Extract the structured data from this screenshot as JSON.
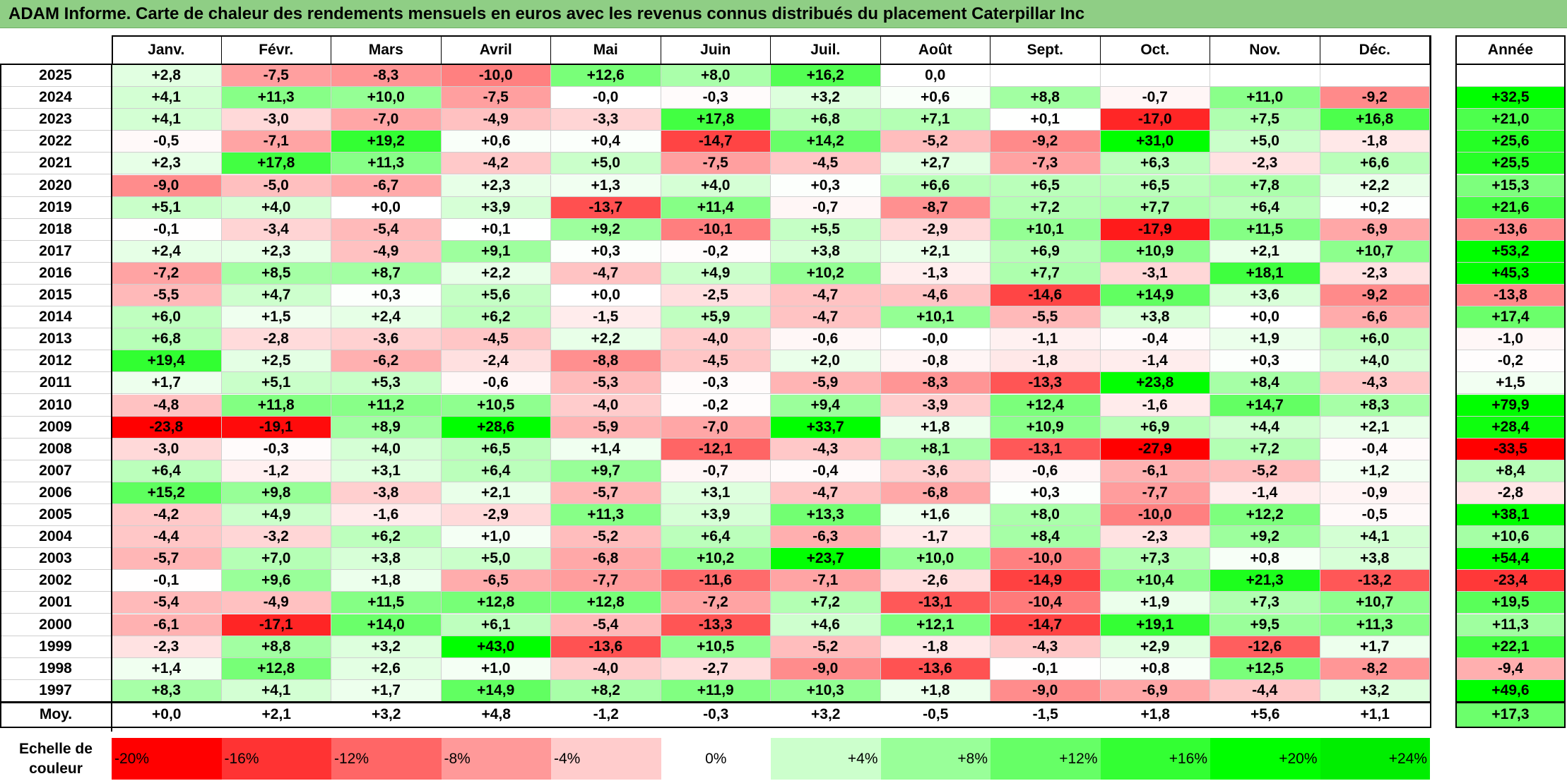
{
  "title": "ADAM Informe. Carte de chaleur des rendements mensuels en euros avec les revenus connus distribués du placement Caterpillar Inc",
  "chart_data": {
    "type": "heatmap",
    "months": [
      "Janv.",
      "Févr.",
      "Mars",
      "Avril",
      "Mai",
      "Juin",
      "Juil.",
      "Août",
      "Sept.",
      "Oct.",
      "Nov.",
      "Déc."
    ],
    "year_header": "Année",
    "rows": [
      {
        "year": "2025",
        "values": [
          "+2,8",
          "-7,5",
          "-8,3",
          "-10,0",
          "+12,6",
          "+8,0",
          "+16,2",
          "0,0",
          "",
          "",
          "",
          ""
        ],
        "annual": ""
      },
      {
        "year": "2024",
        "values": [
          "+4,1",
          "+11,3",
          "+10,0",
          "-7,5",
          "-0,0",
          "-0,3",
          "+3,2",
          "+0,6",
          "+8,8",
          "-0,7",
          "+11,0",
          "-9,2"
        ],
        "annual": "+32,5"
      },
      {
        "year": "2023",
        "values": [
          "+4,1",
          "-3,0",
          "-7,0",
          "-4,9",
          "-3,3",
          "+17,8",
          "+6,8",
          "+7,1",
          "+0,1",
          "-17,0",
          "+7,5",
          "+16,8"
        ],
        "annual": "+21,0"
      },
      {
        "year": "2022",
        "values": [
          "-0,5",
          "-7,1",
          "+19,2",
          "+0,6",
          "+0,4",
          "-14,7",
          "+14,2",
          "-5,2",
          "-9,2",
          "+31,0",
          "+5,0",
          "-1,8"
        ],
        "annual": "+25,6"
      },
      {
        "year": "2021",
        "values": [
          "+2,3",
          "+17,8",
          "+11,3",
          "-4,2",
          "+5,0",
          "-7,5",
          "-4,5",
          "+2,7",
          "-7,3",
          "+6,3",
          "-2,3",
          "+6,6"
        ],
        "annual": "+25,5"
      },
      {
        "year": "2020",
        "values": [
          "-9,0",
          "-5,0",
          "-6,7",
          "+2,3",
          "+1,3",
          "+4,0",
          "+0,3",
          "+6,6",
          "+6,5",
          "+6,5",
          "+7,8",
          "+2,2"
        ],
        "annual": "+15,3"
      },
      {
        "year": "2019",
        "values": [
          "+5,1",
          "+4,0",
          "+0,0",
          "+3,9",
          "-13,7",
          "+11,4",
          "-0,7",
          "-8,7",
          "+7,2",
          "+7,7",
          "+6,4",
          "+0,2"
        ],
        "annual": "+21,6"
      },
      {
        "year": "2018",
        "values": [
          "-0,1",
          "-3,4",
          "-5,4",
          "+0,1",
          "+9,2",
          "-10,1",
          "+5,5",
          "-2,9",
          "+10,1",
          "-17,9",
          "+11,5",
          "-6,9"
        ],
        "annual": "-13,6"
      },
      {
        "year": "2017",
        "values": [
          "+2,4",
          "+2,3",
          "-4,9",
          "+9,1",
          "+0,3",
          "-0,2",
          "+3,8",
          "+2,1",
          "+6,9",
          "+10,9",
          "+2,1",
          "+10,7"
        ],
        "annual": "+53,2"
      },
      {
        "year": "2016",
        "values": [
          "-7,2",
          "+8,5",
          "+8,7",
          "+2,2",
          "-4,7",
          "+4,9",
          "+10,2",
          "-1,3",
          "+7,7",
          "-3,1",
          "+18,1",
          "-2,3"
        ],
        "annual": "+45,3"
      },
      {
        "year": "2015",
        "values": [
          "-5,5",
          "+4,7",
          "+0,3",
          "+5,6",
          "+0,0",
          "-2,5",
          "-4,7",
          "-4,6",
          "-14,6",
          "+14,9",
          "+3,6",
          "-9,2"
        ],
        "annual": "-13,8"
      },
      {
        "year": "2014",
        "values": [
          "+6,0",
          "+1,5",
          "+2,4",
          "+6,2",
          "-1,5",
          "+5,9",
          "-4,7",
          "+10,1",
          "-5,5",
          "+3,8",
          "+0,0",
          "-6,6"
        ],
        "annual": "+17,4"
      },
      {
        "year": "2013",
        "values": [
          "+6,8",
          "-2,8",
          "-3,6",
          "-4,5",
          "+2,2",
          "-4,0",
          "-0,6",
          "-0,0",
          "-1,1",
          "-0,4",
          "+1,9",
          "+6,0"
        ],
        "annual": "-1,0"
      },
      {
        "year": "2012",
        "values": [
          "+19,4",
          "+2,5",
          "-6,2",
          "-2,4",
          "-8,8",
          "-4,5",
          "+2,0",
          "-0,8",
          "-1,8",
          "-1,4",
          "+0,3",
          "+4,0"
        ],
        "annual": "-0,2"
      },
      {
        "year": "2011",
        "values": [
          "+1,7",
          "+5,1",
          "+5,3",
          "-0,6",
          "-5,3",
          "-0,3",
          "-5,9",
          "-8,3",
          "-13,3",
          "+23,8",
          "+8,4",
          "-4,3"
        ],
        "annual": "+1,5"
      },
      {
        "year": "2010",
        "values": [
          "-4,8",
          "+11,8",
          "+11,2",
          "+10,5",
          "-4,0",
          "-0,2",
          "+9,4",
          "-3,9",
          "+12,4",
          "-1,6",
          "+14,7",
          "+8,3"
        ],
        "annual": "+79,9"
      },
      {
        "year": "2009",
        "values": [
          "-23,8",
          "-19,1",
          "+8,9",
          "+28,6",
          "-5,9",
          "-7,0",
          "+33,7",
          "+1,8",
          "+10,9",
          "+6,9",
          "+4,4",
          "+2,1"
        ],
        "annual": "+28,4"
      },
      {
        "year": "2008",
        "values": [
          "-3,0",
          "-0,3",
          "+4,0",
          "+6,5",
          "+1,4",
          "-12,1",
          "-4,3",
          "+8,1",
          "-13,1",
          "-27,9",
          "+7,2",
          "-0,4"
        ],
        "annual": "-33,5"
      },
      {
        "year": "2007",
        "values": [
          "+6,4",
          "-1,2",
          "+3,1",
          "+6,4",
          "+9,7",
          "-0,7",
          "-0,4",
          "-3,6",
          "-0,6",
          "-6,1",
          "-5,2",
          "+1,2"
        ],
        "annual": "+8,4"
      },
      {
        "year": "2006",
        "values": [
          "+15,2",
          "+9,8",
          "-3,8",
          "+2,1",
          "-5,7",
          "+3,1",
          "-4,7",
          "-6,8",
          "+0,3",
          "-7,7",
          "-1,4",
          "-0,9"
        ],
        "annual": "-2,8"
      },
      {
        "year": "2005",
        "values": [
          "-4,2",
          "+4,9",
          "-1,6",
          "-2,9",
          "+11,3",
          "+3,9",
          "+13,3",
          "+1,6",
          "+8,0",
          "-10,0",
          "+12,2",
          "-0,5"
        ],
        "annual": "+38,1"
      },
      {
        "year": "2004",
        "values": [
          "-4,4",
          "-3,2",
          "+6,2",
          "+1,0",
          "-5,2",
          "+6,4",
          "-6,3",
          "-1,7",
          "+8,4",
          "-2,3",
          "+9,2",
          "+4,1"
        ],
        "annual": "+10,6"
      },
      {
        "year": "2003",
        "values": [
          "-5,7",
          "+7,0",
          "+3,8",
          "+5,0",
          "-6,8",
          "+10,2",
          "+23,7",
          "+10,0",
          "-10,0",
          "+7,3",
          "+0,8",
          "+3,8"
        ],
        "annual": "+54,4"
      },
      {
        "year": "2002",
        "values": [
          "-0,1",
          "+9,6",
          "+1,8",
          "-6,5",
          "-7,7",
          "-11,6",
          "-7,1",
          "-2,6",
          "-14,9",
          "+10,4",
          "+21,3",
          "-13,2"
        ],
        "annual": "-23,4"
      },
      {
        "year": "2001",
        "values": [
          "-5,4",
          "-4,9",
          "+11,5",
          "+12,8",
          "+12,8",
          "-7,2",
          "+7,2",
          "-13,1",
          "-10,4",
          "+1,9",
          "+7,3",
          "+10,7"
        ],
        "annual": "+19,5"
      },
      {
        "year": "2000",
        "values": [
          "-6,1",
          "-17,1",
          "+14,0",
          "+6,1",
          "-5,4",
          "-13,3",
          "+4,6",
          "+12,1",
          "-14,7",
          "+19,1",
          "+9,5",
          "+11,3"
        ],
        "annual": "+11,3"
      },
      {
        "year": "1999",
        "values": [
          "-2,3",
          "+8,8",
          "+3,2",
          "+43,0",
          "-13,6",
          "+10,5",
          "-5,2",
          "-1,8",
          "-4,3",
          "+2,9",
          "-12,6",
          "+1,7"
        ],
        "annual": "+22,1"
      },
      {
        "year": "1998",
        "values": [
          "+1,4",
          "+12,8",
          "+2,6",
          "+1,0",
          "-4,0",
          "-2,7",
          "-9,0",
          "-13,6",
          "-0,1",
          "+0,8",
          "+12,5",
          "-8,2"
        ],
        "annual": "-9,4"
      },
      {
        "year": "1997",
        "values": [
          "+8,3",
          "+4,1",
          "+1,7",
          "+14,9",
          "+8,2",
          "+11,9",
          "+10,3",
          "+1,8",
          "-9,0",
          "-6,9",
          "-4,4",
          "+3,2"
        ],
        "annual": "+49,6"
      }
    ],
    "average": {
      "label": "Moy.",
      "values": [
        "+0,0",
        "+2,1",
        "+3,2",
        "+4,8",
        "-1,2",
        "-0,3",
        "+3,2",
        "-0,5",
        "-1,5",
        "+1,8",
        "+5,6",
        "+1,1"
      ],
      "annual": "+17,3"
    },
    "scale": {
      "label": "Echelle de couleur",
      "steps": [
        "-20%",
        "-16%",
        "-12%",
        "-8%",
        "-4%",
        "0%",
        "+4%",
        "+8%",
        "+12%",
        "+16%",
        "+20%",
        "+24%"
      ],
      "colors": [
        "#ff0000",
        "#ff3333",
        "#ff6666",
        "#ff9999",
        "#ffcccc",
        "#ffffff",
        "#ccffcc",
        "#99ff99",
        "#66ff66",
        "#33ff33",
        "#00ff00",
        "#00ee00"
      ]
    }
  }
}
